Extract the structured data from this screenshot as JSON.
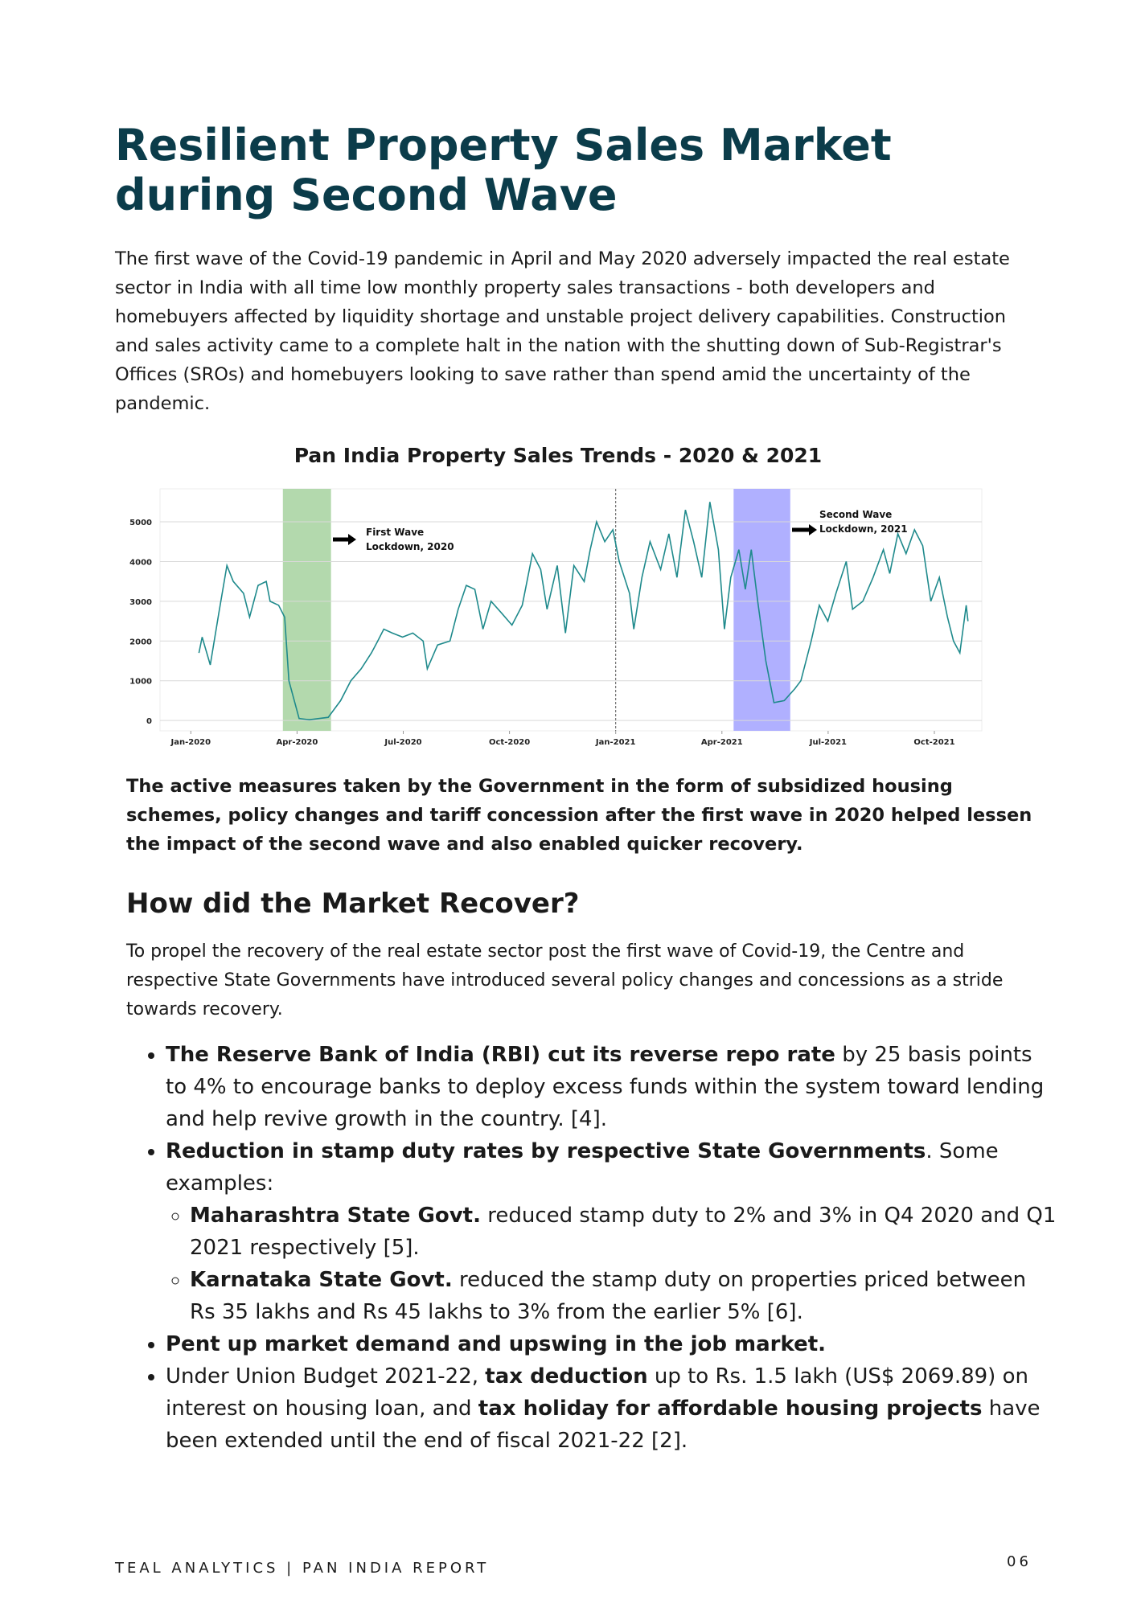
{
  "title": "Resilient Property Sales Market during Second Wave",
  "intro": "The first wave of the Covid-19 pandemic in April and May 2020 adversely impacted the real estate sector in India with all time low monthly property sales transactions - both developers and homebuyers affected by liquidity shortage and unstable project delivery capabilities. Construction and sales activity came to a complete halt in the nation with the shutting down of Sub-Registrar's Offices (SROs) and homebuyers looking to save rather than spend amid the uncertainty of the pandemic.",
  "chart_data": {
    "type": "line",
    "title": "Pan India Property Sales Trends - 2020 & 2021",
    "x": [
      0.23,
      0.32,
      0.55,
      0.79,
      1.02,
      1.2,
      1.49,
      1.66,
      1.9,
      2.13,
      2.24,
      2.48,
      2.65,
      2.77,
      3.06,
      3.35,
      3.88,
      4.23,
      4.52,
      4.81,
      5.1,
      5.28,
      5.45,
      5.69,
      5.98,
      6.27,
      6.56,
      6.68,
      6.97,
      7.32,
      7.55,
      7.78,
      8.02,
      8.25,
      8.48,
      8.78,
      9.07,
      9.36,
      9.65,
      9.88,
      10.06,
      10.35,
      10.58,
      10.82,
      11.11,
      11.28,
      11.46,
      11.69,
      11.92,
      12.1,
      12.39,
      12.51,
      12.74,
      12.97,
      13.27,
      13.5,
      13.73,
      13.97,
      14.2,
      14.43,
      14.66,
      14.9,
      15.07,
      15.25,
      15.48,
      15.66,
      15.83,
      16.01,
      16.24,
      16.47,
      16.76,
      17.06,
      17.23,
      17.52,
      17.75,
      17.99,
      18.22,
      18.51,
      18.69,
      18.98,
      19.27,
      19.56,
      19.74,
      19.97,
      20.2,
      20.44,
      20.67,
      20.9,
      21.14,
      21.37,
      21.54,
      21.72,
      21.9,
      21.95
    ],
    "values": [
      1700,
      2100,
      1400,
      2700,
      3900,
      3500,
      3200,
      2600,
      3400,
      3500,
      3000,
      2900,
      2600,
      1000,
      50,
      20,
      80,
      500,
      1000,
      1300,
      1700,
      2000,
      2300,
      2200,
      2100,
      2200,
      2000,
      1300,
      1900,
      2000,
      2800,
      3400,
      3300,
      2300,
      3000,
      2700,
      2400,
      2900,
      4200,
      3800,
      2800,
      3900,
      2200,
      3900,
      3500,
      4300,
      5000,
      4500,
      4800,
      4000,
      3200,
      2300,
      3600,
      4500,
      3800,
      4700,
      3600,
      5300,
      4500,
      3600,
      5500,
      4300,
      2300,
      3600,
      4300,
      3300,
      4300,
      3000,
      1500,
      450,
      500,
      800,
      1000,
      2000,
      2900,
      2500,
      3200,
      4000,
      2800,
      3000,
      3600,
      4300,
      3700,
      4700,
      4200,
      4800,
      4400,
      3000,
      3600,
      2600,
      2000,
      1700,
      2900,
      2500
    ],
    "color": "#1f8a8c",
    "xlim": [
      -0.87,
      22.34
    ],
    "ylim": [
      -260,
      5830
    ],
    "xticks": [
      {
        "value": 0,
        "label": "Jan-2020"
      },
      {
        "value": 3,
        "label": "Apr-2020"
      },
      {
        "value": 6,
        "label": "Jul-2020"
      },
      {
        "value": 9,
        "label": "Oct-2020"
      },
      {
        "value": 12,
        "label": "Jan-2021"
      },
      {
        "value": 15,
        "label": "Apr-2021"
      },
      {
        "value": 18,
        "label": "Jul-2021"
      },
      {
        "value": 21,
        "label": "Oct-2021"
      }
    ],
    "yticks": [
      0,
      1000,
      2000,
      3000,
      4000,
      5000
    ],
    "grid": true,
    "spans": [
      {
        "start": 2.6,
        "end": 3.96,
        "color": "#b3d9ad"
      },
      {
        "start": 15.33,
        "end": 16.93,
        "color": "#b0b0ff"
      }
    ],
    "vline": 12,
    "annotations": [
      [
        "First Wave",
        "Lockdown, 2020"
      ],
      [
        "Second Wave",
        "Lockdown, 2021"
      ]
    ]
  },
  "highlight": "The active measures taken by the Government in the form of subsidized housing schemes, policy changes and tariff concession after the first wave in 2020 helped lessen the impact of the second wave and also enabled quicker recovery.",
  "section": {
    "heading": "How did the Market Recover?",
    "intro": "To propel the recovery of the real estate sector post the first wave of Covid-19, the Centre and respective State Governments have introduced several policy changes and concessions as a stride towards recovery."
  },
  "bullets": [
    {
      "parts": [
        "The Reserve Bank of India (RBI) cut its reverse repo rate",
        " by 25 basis points to 4% to encourage banks to deploy excess funds within the system toward lending and help revive growth in the country. [4]."
      ]
    },
    {
      "parts": [
        "Reduction in stamp duty rates by respective State Governments",
        ". Some examples:"
      ],
      "sub": [
        {
          "parts": [
            "Maharashtra State Govt.",
            " reduced stamp duty to 2% and 3% in Q4 2020 and Q1 2021 respectively [5]."
          ]
        },
        {
          "parts": [
            "Karnataka State Govt.",
            " reduced the stamp duty on properties priced between Rs 35 lakhs and Rs 45 lakhs to 3% from the earlier 5% [6]."
          ]
        }
      ]
    },
    {
      "parts": [
        "Pent up market demand and upswing in the job market."
      ]
    },
    {
      "parts": [
        "Under Union Budget 2021-22, ",
        "tax deduction",
        " up to Rs. 1.5 lakh (US$ 2069.89) on interest on housing loan, and ",
        "tax holiday for affordable housing projects",
        " have been extended until the end of fiscal 2021-22 [2]."
      ]
    }
  ],
  "footer": {
    "left": "TEAL ANALYTICS | PAN INDIA REPORT",
    "page": "06"
  }
}
